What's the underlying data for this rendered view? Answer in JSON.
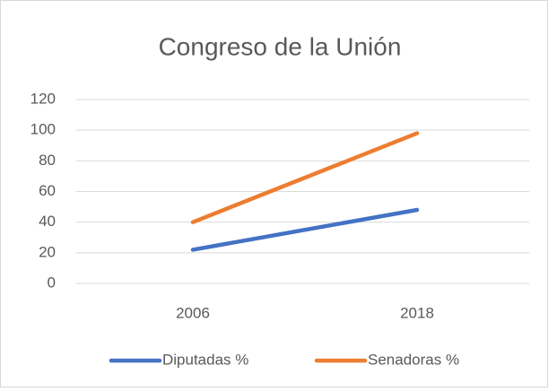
{
  "chart_data": {
    "type": "line",
    "title": "Congreso de la Unión",
    "categories": [
      "2006",
      "2018"
    ],
    "series": [
      {
        "name": "Diputadas %",
        "color": "#4472c4",
        "values": [
          22,
          48
        ]
      },
      {
        "name": "Senadoras %",
        "color": "#ed7d31",
        "values": [
          40,
          98
        ]
      }
    ],
    "ylim": [
      0,
      120
    ],
    "yticks": [
      0,
      20,
      40,
      60,
      80,
      100,
      120
    ],
    "grid": true,
    "legend": "bottom"
  }
}
